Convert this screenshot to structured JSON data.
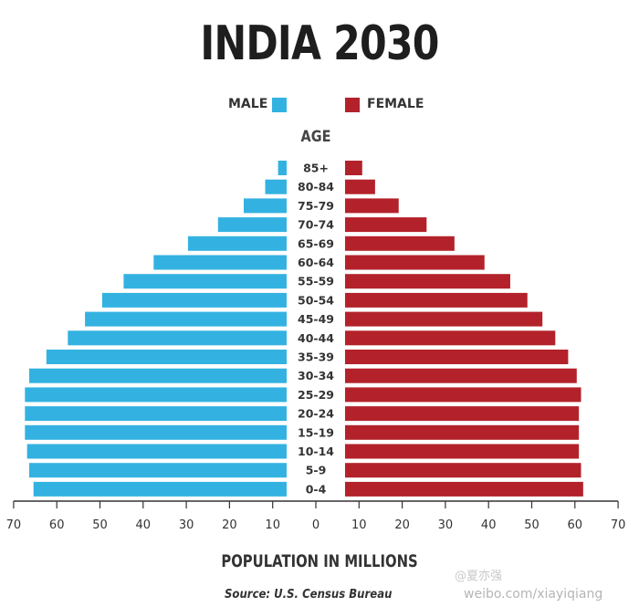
{
  "title": "INDIA 2030",
  "legend": {
    "male_label": "MALE",
    "female_label": "FEMALE",
    "male_color": "#33b2e1",
    "female_color": "#b3222a"
  },
  "age_axis_label": "AGE",
  "source": "Source: U.S. Census Bureau",
  "watermark": {
    "text": "@夏亦强",
    "url": "weibo.com/xiayiqiang"
  },
  "chart_data": {
    "type": "bar",
    "orientation": "population-pyramid",
    "xlabel": "POPULATION IN MILLIONS",
    "ylabel": "AGE",
    "xlim": [
      -70,
      70
    ],
    "xticks": [
      70,
      60,
      50,
      40,
      30,
      20,
      10,
      0,
      10,
      20,
      30,
      40,
      50,
      60,
      70
    ],
    "categories": [
      "85+",
      "80-84",
      "75-79",
      "70-74",
      "65-69",
      "60-64",
      "55-59",
      "50-54",
      "45-49",
      "40-44",
      "35-39",
      "30-34",
      "25-29",
      "20-24",
      "15-19",
      "10-14",
      "5-9",
      "0-4"
    ],
    "series": [
      {
        "name": "MALE",
        "values": [
          2,
          5,
          10,
          16,
          23,
          31,
          38,
          43,
          47,
          51,
          56,
          60,
          61,
          61,
          61,
          60.5,
          60,
          59
        ]
      },
      {
        "name": "FEMALE",
        "values": [
          4,
          7,
          12.5,
          19,
          25.5,
          32.5,
          38.5,
          42.5,
          46,
          49,
          52,
          54,
          55,
          54.5,
          54.5,
          54.5,
          55,
          55.5
        ]
      }
    ]
  }
}
